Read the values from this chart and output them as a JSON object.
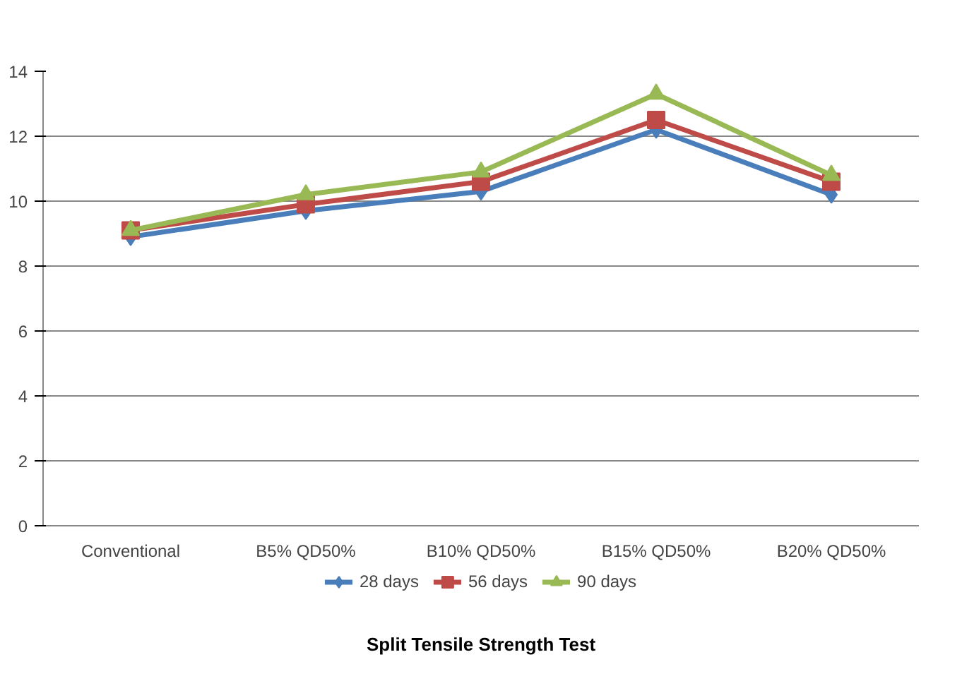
{
  "chart_data": {
    "type": "line",
    "title": "Split Tensile Strength Test",
    "categories": [
      "Conventional",
      "B5% QD50%",
      "B10% QD50%",
      "B15% QD50%",
      "B20% QD50%"
    ],
    "series": [
      {
        "name": "28 days",
        "color": "#4a7ebb",
        "marker": "diamond",
        "values": [
          8.9,
          9.7,
          10.3,
          12.2,
          10.2
        ]
      },
      {
        "name": "56 days",
        "color": "#be4b48",
        "marker": "square",
        "values": [
          9.1,
          9.9,
          10.6,
          12.5,
          10.6
        ]
      },
      {
        "name": "90 days",
        "color": "#98b954",
        "marker": "triangle",
        "values": [
          9.1,
          10.2,
          10.9,
          13.3,
          10.8
        ]
      }
    ],
    "ylim": [
      0,
      14
    ],
    "yticks": [
      0,
      2,
      4,
      6,
      8,
      10,
      12,
      14
    ],
    "grid": "y",
    "legend": "bottom"
  }
}
